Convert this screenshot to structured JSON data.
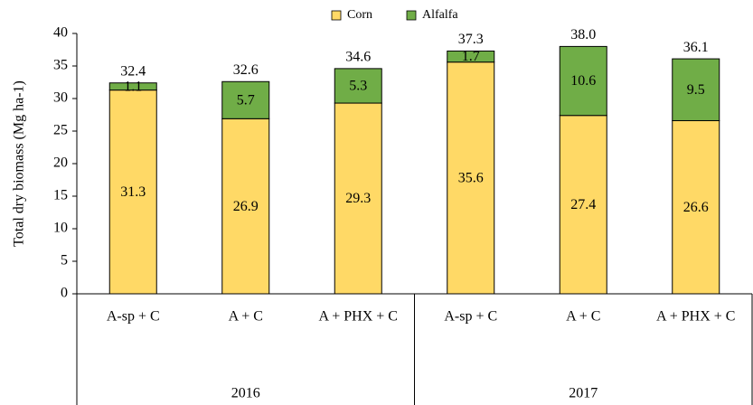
{
  "chart_data": {
    "type": "stacked_bar",
    "y_axis_label": "Total dry biomass (Mg ha-1)",
    "categories": [
      "A-sp + C",
      "A + C",
      "A + PHX + C",
      "A-sp + C",
      "A + C",
      "A + PHX + C"
    ],
    "group_labels": [
      "2016",
      "2017"
    ],
    "series": [
      {
        "name": "Corn",
        "color": "#ffd966",
        "values": [
          31.3,
          26.9,
          29.3,
          35.6,
          27.4,
          26.6
        ]
      },
      {
        "name": "Alfalfa",
        "color": "#70ad47",
        "values": [
          1.1,
          5.7,
          5.3,
          1.7,
          10.6,
          9.5
        ]
      }
    ],
    "totals": [
      32.4,
      32.6,
      34.6,
      37.3,
      38.0,
      36.1
    ],
    "totals_value_labels": [
      "32.4",
      "32.6",
      "34.6",
      "37.3",
      "38.0",
      "36.1"
    ],
    "ylim": [
      0,
      40
    ],
    "yticks": [
      0,
      5,
      10,
      15,
      20,
      25,
      30,
      35,
      40
    ],
    "legend": "top"
  }
}
